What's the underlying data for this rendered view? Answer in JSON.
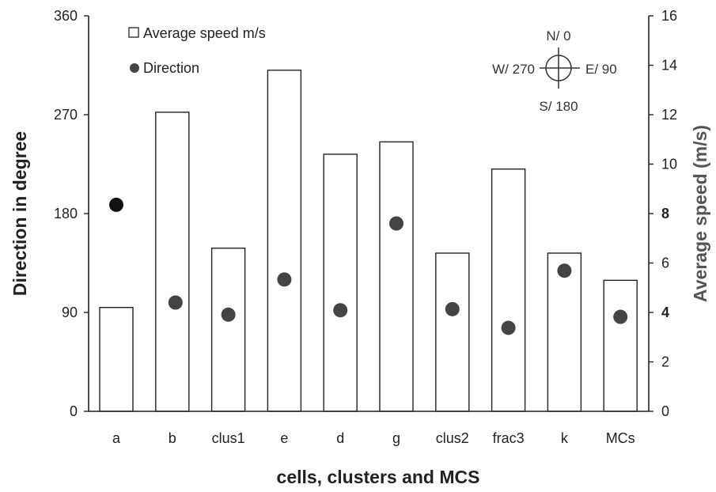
{
  "chart_data": {
    "type": "bar",
    "xlabel": "cells, clusters and MCS",
    "ylabel": "Direction in degree",
    "ylabel_right": "Average speed (m/s)",
    "categories": [
      "a",
      "b",
      "clus1",
      "e",
      "d",
      "g",
      "clus2",
      "frac3",
      "k",
      "MCs"
    ],
    "y_left": {
      "ylim": [
        0,
        360
      ],
      "ticks": [
        "0",
        "90",
        "180",
        "270",
        "360"
      ]
    },
    "y_right": {
      "ylim": [
        0,
        16
      ],
      "ticks": [
        "0",
        "2",
        "4",
        "6",
        "8",
        "10",
        "12",
        "14",
        "16"
      ]
    },
    "series": [
      {
        "name": "Average speed m/s",
        "type": "bar",
        "axis": "right",
        "values": [
          4.2,
          12.1,
          6.6,
          13.8,
          10.4,
          10.9,
          6.4,
          9.8,
          6.4,
          5.3
        ],
        "fill": "#ffffff",
        "stroke": "#222222"
      },
      {
        "name": "Direction",
        "type": "scatter",
        "axis": "left",
        "values": [
          188,
          99,
          88,
          120,
          92,
          171,
          93,
          76,
          128,
          86
        ],
        "color": "#444444",
        "first_color": "#111111"
      }
    ],
    "compass": {
      "north": "N/ 0",
      "east": "E/ 90",
      "south": "S/ 180",
      "west": "W/ 270"
    },
    "legend": {
      "position": "top-left"
    },
    "grid": false
  }
}
